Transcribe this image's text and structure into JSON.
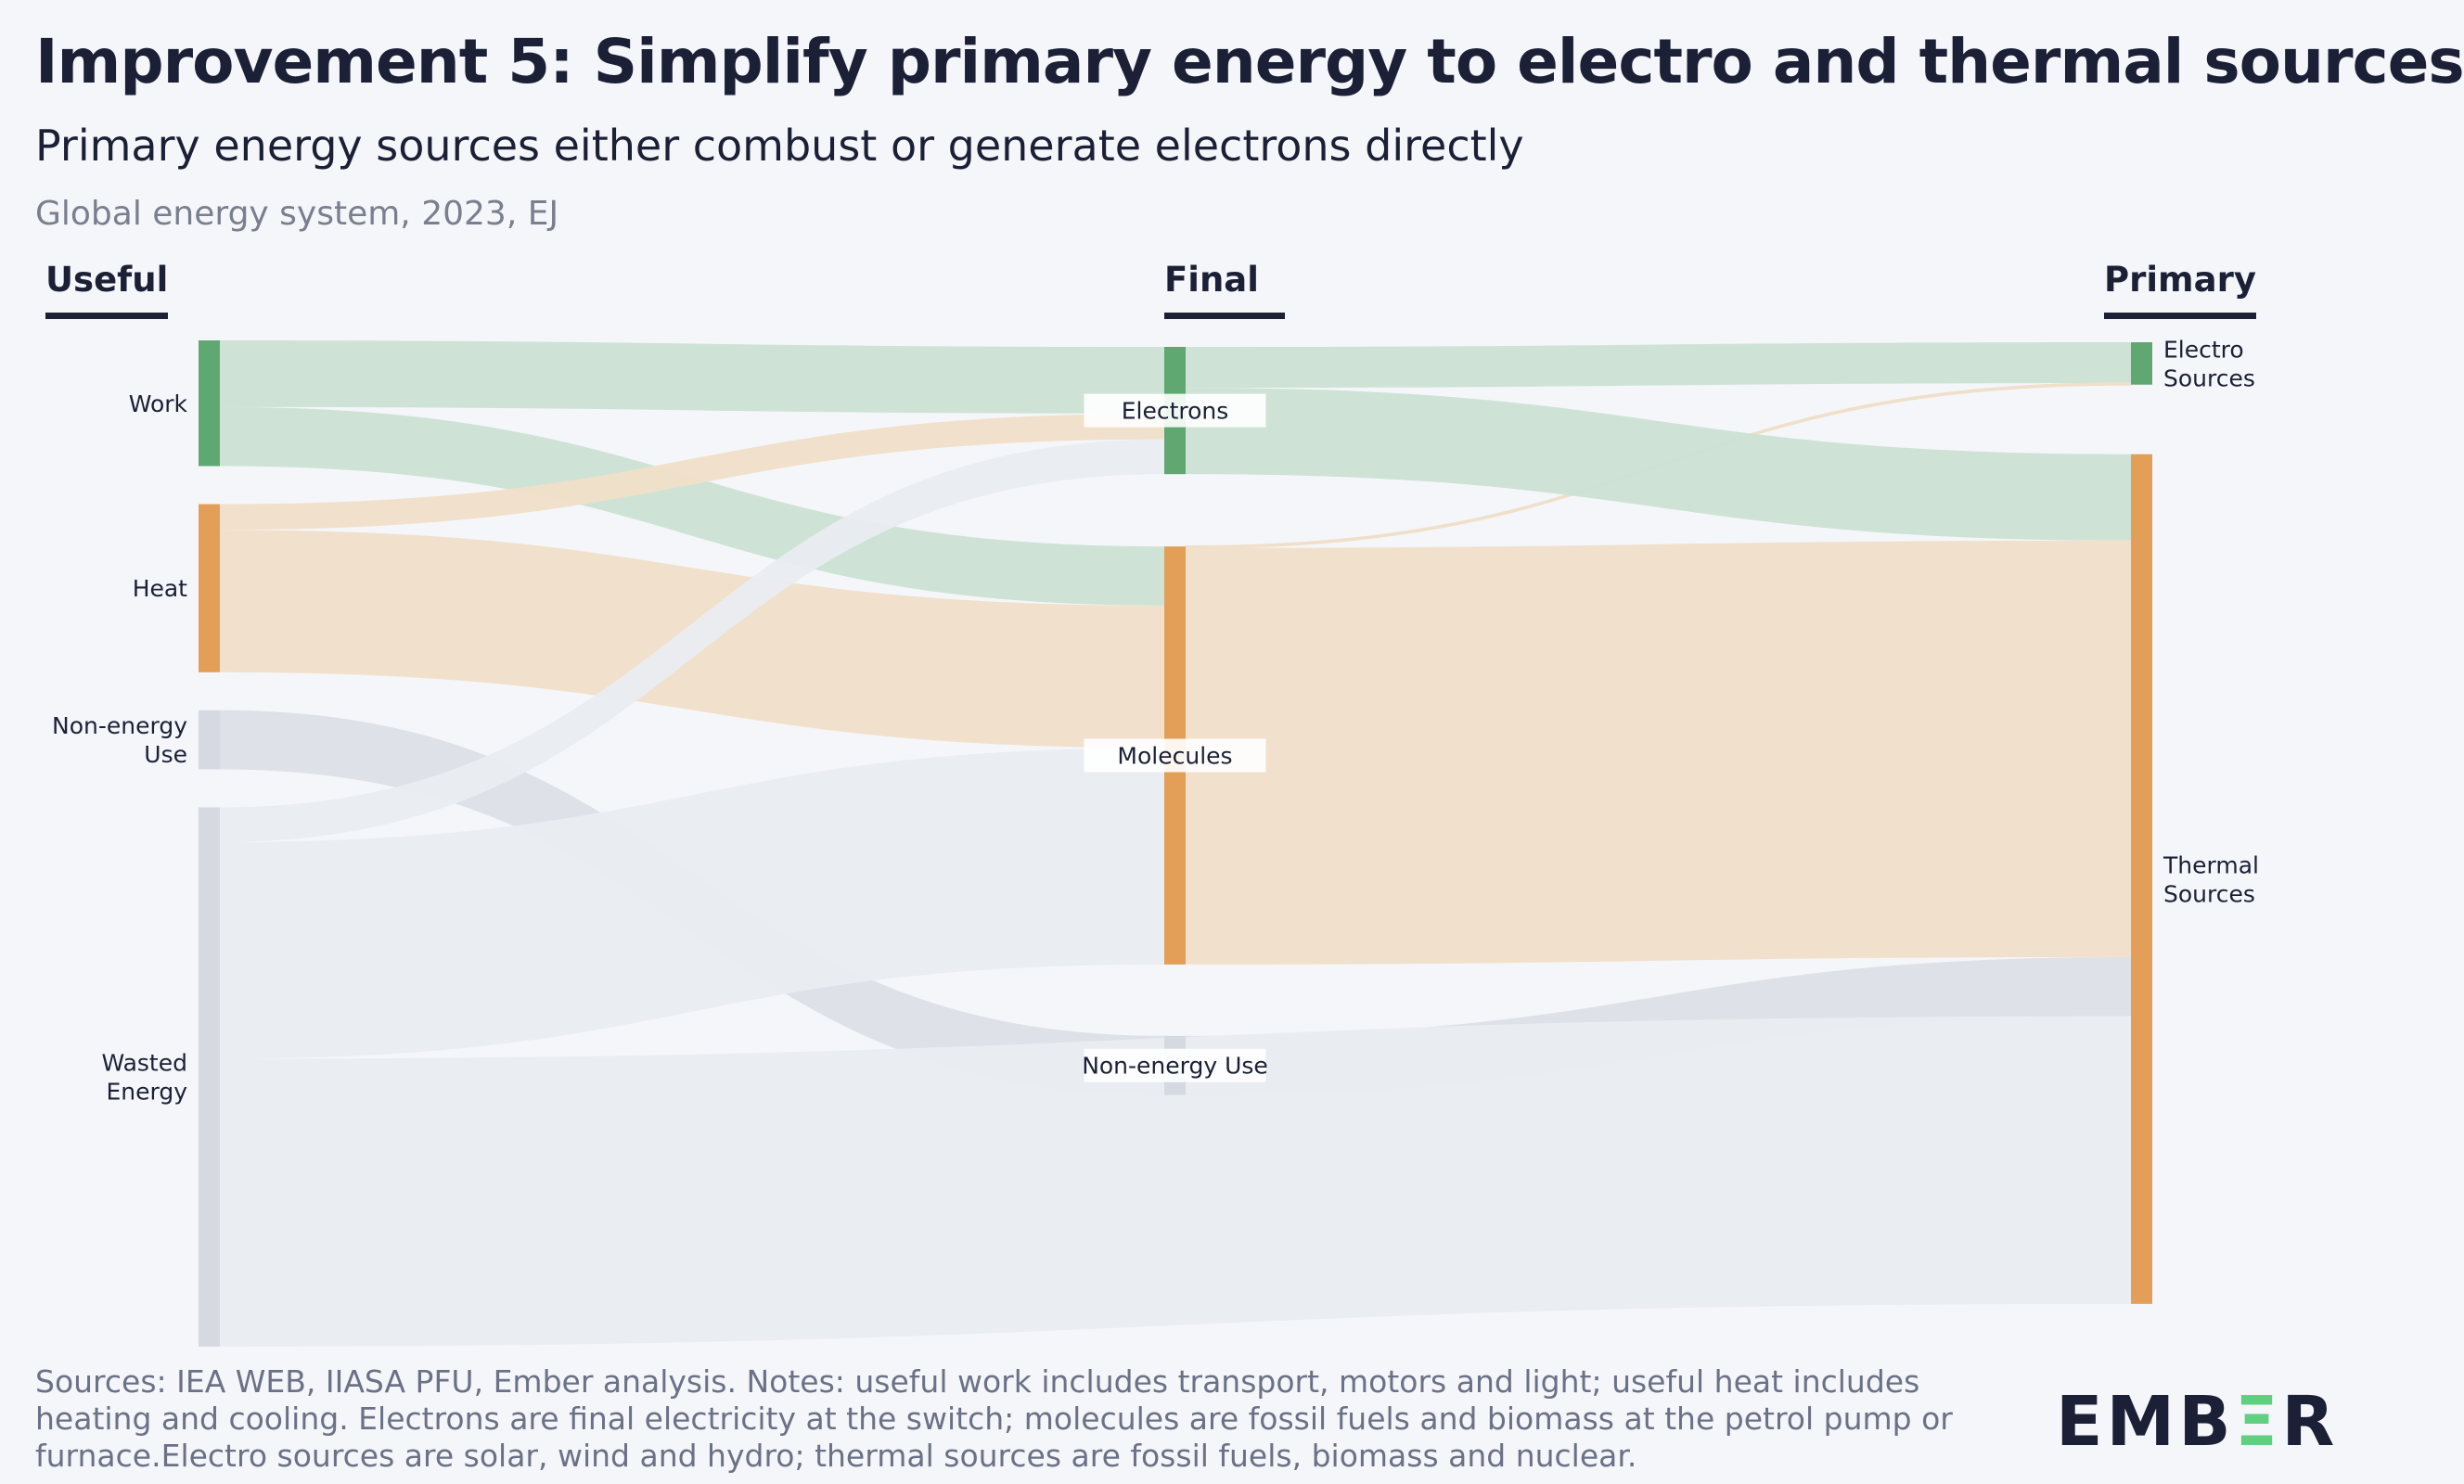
{
  "header": {
    "title": "Improvement 5: Simplify primary energy to electro and thermal sources",
    "subtitle": "Primary energy sources either combust or generate electrons directly",
    "meta": "Global energy system, 2023, EJ"
  },
  "footer": {
    "notes": "Sources: IEA WEB, IIASA PFU, Ember analysis. Notes: useful work includes transport, motors and light; useful heat includes heating and cooling. Electrons are final electricity at the switch; molecules are fossil fuels and biomass at the petrol pump or furnace.Electro sources are solar, wind and hydro; thermal sources are fossil fuels, biomass and nuclear.",
    "logo": "EMBER"
  },
  "colors": {
    "green_node": "#5fa872",
    "orange_node": "#e39f58",
    "gray_node": "#d5d9e1",
    "green_link": "#cbe1d4",
    "orange_link": "#f0dfc9",
    "gray_link": "#e9ecf1",
    "gray_link_dark": "#dcdfe6",
    "background": "#f5f6fa"
  },
  "chart_data": {
    "type": "sankey",
    "units": "EJ",
    "columns": [
      "Useful",
      "Final",
      "Primary"
    ],
    "nodes": [
      {
        "id": "work",
        "label": "Work",
        "column": 0,
        "value": 83,
        "color": "green"
      },
      {
        "id": "heat",
        "label": "Heat",
        "column": 0,
        "value": 111,
        "color": "orange"
      },
      {
        "id": "nonenergy_u",
        "label": "Non-energy\nUse",
        "column": 0,
        "value": 39,
        "color": "gray"
      },
      {
        "id": "wasted",
        "label": "Wasted\nEnergy",
        "column": 0,
        "value": 356,
        "color": "gray"
      },
      {
        "id": "electrons",
        "label": "Electrons",
        "column": 1,
        "value": 84,
        "color": "green"
      },
      {
        "id": "molecules",
        "label": "Molecules",
        "column": 1,
        "value": 276,
        "color": "orange"
      },
      {
        "id": "nonenergy_f",
        "label": "Non-energy Use",
        "column": 1,
        "value": 39,
        "color": "gray"
      },
      {
        "id": "electro",
        "label": "Electro\nSources",
        "column": 2,
        "value": 28,
        "color": "green"
      },
      {
        "id": "thermal",
        "label": "Thermal\nSources",
        "column": 2,
        "value": 561,
        "color": "orange"
      }
    ],
    "links": [
      {
        "source": "work",
        "target": "electrons",
        "value": 44,
        "color": "green"
      },
      {
        "source": "work",
        "target": "molecules",
        "value": 39,
        "color": "green"
      },
      {
        "source": "heat",
        "target": "electrons",
        "value": 17,
        "color": "orange"
      },
      {
        "source": "heat",
        "target": "molecules",
        "value": 94,
        "color": "orange"
      },
      {
        "source": "nonenergy_u",
        "target": "nonenergy_f",
        "value": 39,
        "color": "gray_dark"
      },
      {
        "source": "wasted",
        "target": "electrons",
        "value": 23,
        "color": "gray"
      },
      {
        "source": "wasted",
        "target": "molecules",
        "value": 143,
        "color": "gray"
      },
      {
        "source": "electrons",
        "target": "electro",
        "value": 27,
        "color": "green"
      },
      {
        "source": "molecules",
        "target": "electro",
        "value": 1,
        "color": "orange"
      },
      {
        "source": "electrons",
        "target": "thermal",
        "value": 57,
        "color": "green"
      },
      {
        "source": "molecules",
        "target": "thermal",
        "value": 275,
        "color": "orange"
      },
      {
        "source": "nonenergy_f",
        "target": "thermal",
        "value": 39,
        "color": "gray_dark"
      },
      {
        "source": "wasted",
        "target": "thermal",
        "value": 190,
        "color": "gray"
      }
    ]
  }
}
